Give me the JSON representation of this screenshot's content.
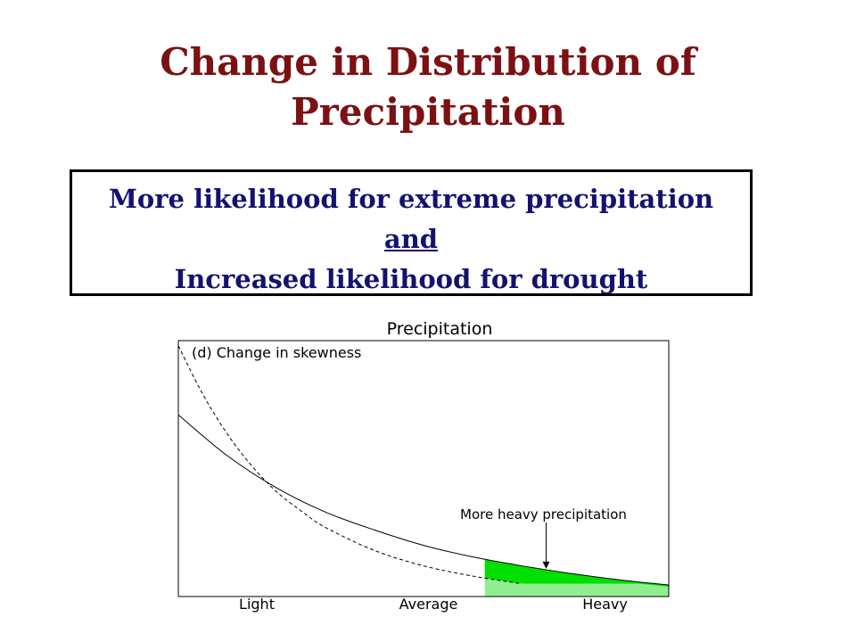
{
  "slide": {
    "title_line1": "Change in Distribution of",
    "title_line2": "Precipitation",
    "callout_line1": "More likelihood for extreme precipitation",
    "callout_line2": "and",
    "callout_line3": "Increased likelihood for drought",
    "colors": {
      "title": "#7b1113",
      "callout_text": "#13136e",
      "highlight_light": "#90ee90",
      "highlight_dark": "#00e000"
    }
  },
  "chart_data": {
    "type": "line",
    "title": "Precipitation",
    "panel_label": "(d) Change in skewness",
    "xlabel": "",
    "ylabel": "",
    "x_ticks": [
      {
        "label": "Light",
        "x": 0.16
      },
      {
        "label": "Average",
        "x": 0.51
      },
      {
        "label": "Heavy",
        "x": 0.87
      }
    ],
    "xlim": [
      0,
      1
    ],
    "ylim": [
      0,
      1
    ],
    "series": [
      {
        "style": "solid",
        "x": [
          0,
          0.1,
          0.2,
          0.3,
          0.4,
          0.5,
          0.6,
          0.7,
          0.8,
          0.9,
          1.0
        ],
        "y": [
          0.71,
          0.55,
          0.425,
          0.33,
          0.26,
          0.2,
          0.155,
          0.12,
          0.09,
          0.065,
          0.045
        ]
      },
      {
        "style": "dashed",
        "x": [
          0,
          0.05,
          0.1,
          0.15,
          0.2,
          0.25,
          0.3,
          0.4,
          0.5,
          0.6,
          0.7
        ],
        "y": [
          0.98,
          0.79,
          0.635,
          0.51,
          0.41,
          0.335,
          0.27,
          0.18,
          0.12,
          0.08,
          0.05
        ]
      }
    ],
    "shaded_region": {
      "x_start": 0.625,
      "x_end": 1.0
    },
    "annotation": {
      "text": "More heavy precipitation",
      "arrow_x": 0.75
    },
    "grid": false
  }
}
